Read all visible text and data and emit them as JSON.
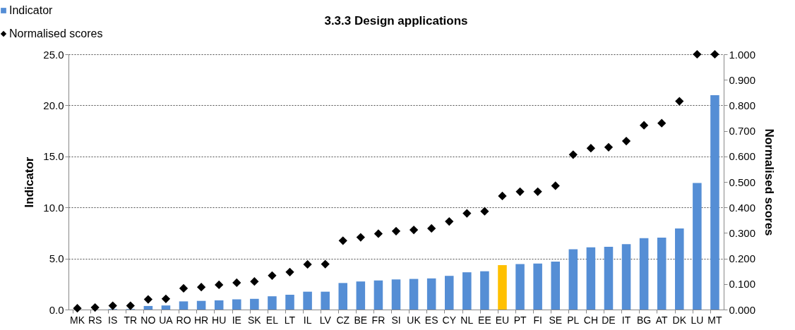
{
  "chart_data": {
    "type": "bar",
    "title": "3.3.3 Design applications",
    "ylabel": "Indicator",
    "y2label": "Normalised scores",
    "categories": [
      "MK",
      "RS",
      "IS",
      "TR",
      "NO",
      "UA",
      "RO",
      "HR",
      "HU",
      "IE",
      "SK",
      "EL",
      "LT",
      "IL",
      "LV",
      "CZ",
      "BE",
      "FR",
      "SI",
      "UK",
      "ES",
      "CY",
      "NL",
      "EE",
      "EU",
      "PT",
      "FI",
      "SE",
      "PL",
      "CH",
      "DE",
      "IT",
      "BG",
      "AT",
      "DK",
      "LU",
      "MT"
    ],
    "series": [
      {
        "name": "Indicator",
        "color": "#558ed5",
        "colors": [
          "#558ed5",
          "#558ed5",
          "#558ed5",
          "#558ed5",
          "#558ed5",
          "#558ed5",
          "#558ed5",
          "#558ed5",
          "#558ed5",
          "#558ed5",
          "#558ed5",
          "#558ed5",
          "#558ed5",
          "#558ed5",
          "#558ed5",
          "#558ed5",
          "#558ed5",
          "#558ed5",
          "#558ed5",
          "#558ed5",
          "#558ed5",
          "#558ed5",
          "#558ed5",
          "#558ed5",
          "#ffc000",
          "#558ed5",
          "#558ed5",
          "#558ed5",
          "#558ed5",
          "#558ed5",
          "#558ed5",
          "#558ed5",
          "#558ed5",
          "#558ed5",
          "#558ed5",
          "#558ed5",
          "#558ed5"
        ],
        "values": [
          0.0,
          0.0,
          0.05,
          0.05,
          0.35,
          0.4,
          0.8,
          0.85,
          0.9,
          1.0,
          1.05,
          1.3,
          1.45,
          1.75,
          1.75,
          2.6,
          2.75,
          2.85,
          2.95,
          3.0,
          3.05,
          3.3,
          3.65,
          3.75,
          4.35,
          4.45,
          4.5,
          4.7,
          5.9,
          6.1,
          6.15,
          6.4,
          7.0,
          7.05,
          7.95,
          12.4,
          21.0
        ]
      },
      {
        "name": "Normalised scores",
        "type": "scatter",
        "axis": "y2",
        "color": "#000000",
        "marker": "diamond",
        "values": [
          0.005,
          0.008,
          0.015,
          0.015,
          0.04,
          0.042,
          0.083,
          0.088,
          0.097,
          0.105,
          0.11,
          0.133,
          0.147,
          0.177,
          0.178,
          0.27,
          0.283,
          0.297,
          0.307,
          0.312,
          0.318,
          0.345,
          0.377,
          0.385,
          0.445,
          0.462,
          0.462,
          0.485,
          0.607,
          0.632,
          0.636,
          0.66,
          0.722,
          0.73,
          0.816,
          1.0,
          1.0
        ]
      }
    ],
    "ylim": [
      0,
      25
    ],
    "yticks": [
      {
        "value": 0,
        "label": "0.0"
      },
      {
        "value": 5,
        "label": "5.0"
      },
      {
        "value": 10,
        "label": "10.0"
      },
      {
        "value": 15,
        "label": "15.0"
      },
      {
        "value": 20,
        "label": "20.0"
      },
      {
        "value": 25,
        "label": "25.0"
      }
    ],
    "y2lim": [
      0,
      1
    ],
    "y2ticks": [
      {
        "value": 0,
        "label": "0.000"
      },
      {
        "value": 0.1,
        "label": "0.100"
      },
      {
        "value": 0.2,
        "label": "0.200"
      },
      {
        "value": 0.3,
        "label": "0.300"
      },
      {
        "value": 0.4,
        "label": "0.400"
      },
      {
        "value": 0.5,
        "label": "0.500"
      },
      {
        "value": 0.6,
        "label": "0.600"
      },
      {
        "value": 0.7,
        "label": "0.700"
      },
      {
        "value": 0.8,
        "label": "0.800"
      },
      {
        "value": 0.9,
        "label": "0.900"
      },
      {
        "value": 1.0,
        "label": "1.000"
      }
    ],
    "grid": "y",
    "legend": "top left"
  }
}
